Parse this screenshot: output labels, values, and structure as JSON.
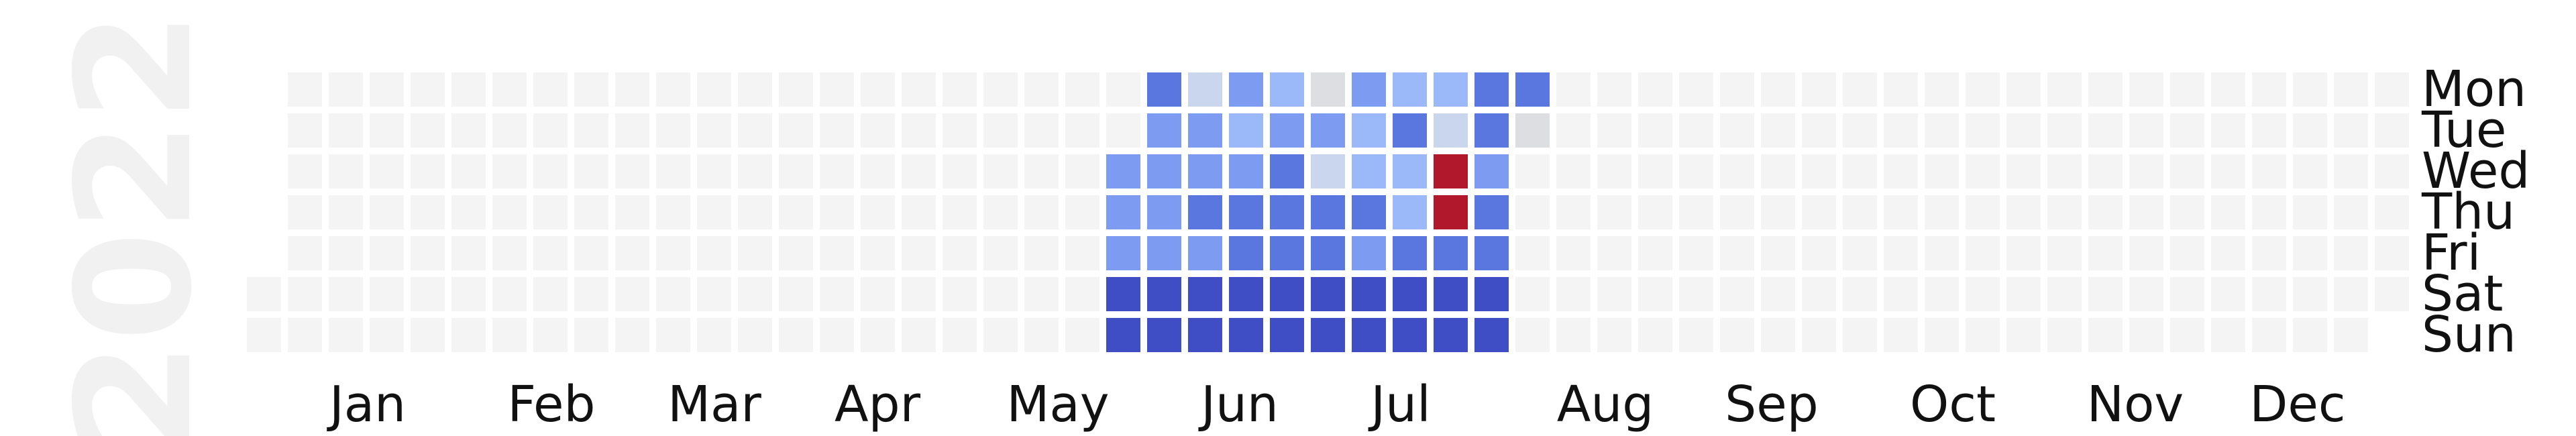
{
  "chart_data": {
    "type": "heatmap",
    "title": "",
    "year_label": "2022",
    "weekday_labels": [
      "Mon",
      "Tue",
      "Wed",
      "Thu",
      "Fri",
      "Sat",
      "Sun"
    ],
    "month_labels": [
      "Jan",
      "Feb",
      "Mar",
      "Apr",
      "May",
      "Jun",
      "Jul",
      "Aug",
      "Sep",
      "Oct",
      "Nov",
      "Dec"
    ],
    "start_date": "2022-01-01",
    "end_date": "2022-12-31",
    "empty_color": "#f4f4f4",
    "color_scale": [
      "#3f4ec4",
      "#5a76df",
      "#7c9bf1",
      "#9bb8f8",
      "#c9d6ee",
      "#dcdee2",
      "#b2182b"
    ],
    "weekly_levels": [
      {
        "week_start": "2022-05-30",
        "levels": [
          1,
          2,
          2,
          2,
          2,
          0,
          0
        ]
      },
      {
        "week_start": "2022-06-06",
        "levels": [
          4,
          2,
          2,
          1,
          2,
          0,
          0
        ]
      },
      {
        "week_start": "2022-06-13",
        "levels": [
          2,
          3,
          2,
          1,
          1,
          0,
          0
        ]
      },
      {
        "week_start": "2022-06-20",
        "levels": [
          3,
          2,
          1,
          1,
          1,
          0,
          0
        ]
      },
      {
        "week_start": "2022-06-27",
        "levels": [
          5,
          2,
          4,
          1,
          1,
          0,
          0
        ]
      },
      {
        "week_start": "2022-07-04",
        "levels": [
          2,
          3,
          3,
          1,
          2,
          0,
          0
        ]
      },
      {
        "week_start": "2022-07-11",
        "levels": [
          3,
          1,
          3,
          3,
          1,
          0,
          0
        ]
      },
      {
        "week_start": "2022-07-18",
        "levels": [
          3,
          4,
          6,
          6,
          1,
          0,
          0
        ]
      },
      {
        "week_start": "2022-07-25",
        "levels": [
          1,
          1,
          2,
          1,
          1,
          0,
          0
        ]
      },
      {
        "week_start": "2022-08-01",
        "levels": [
          1,
          5
        ]
      }
    ],
    "partial_week": {
      "week_start": "2022-05-23",
      "levels_from_wednesday": [
        2,
        2,
        2,
        0,
        0
      ]
    }
  }
}
